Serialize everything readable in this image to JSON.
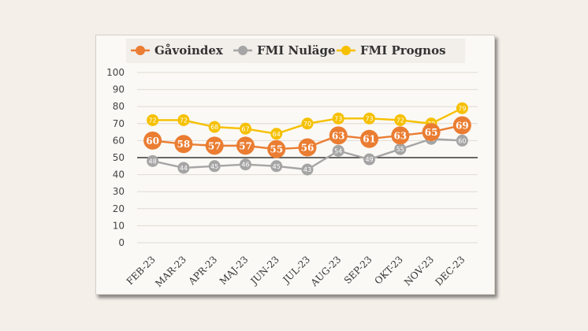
{
  "chart_data": {
    "type": "line",
    "categories": [
      "FEB-23",
      "MAR-23",
      "APR-23",
      "MAJ-23",
      "JUN-23",
      "JUL-23",
      "AUG-23",
      "SEP-23",
      "OKT-23",
      "NOV-23",
      "DEC-23"
    ],
    "series": [
      {
        "name": "Gåvoindex",
        "color": "#ea7d32",
        "values": [
          60,
          58,
          57,
          57,
          55,
          56,
          63,
          61,
          63,
          65,
          69
        ]
      },
      {
        "name": "FMI Nuläge",
        "color": "#a5a5a5",
        "values": [
          48,
          44,
          45,
          46,
          45,
          43,
          54,
          49,
          55,
          61,
          60
        ]
      },
      {
        "name": "FMI Prognos",
        "color": "#f6c000",
        "values": [
          72,
          72,
          68,
          67,
          64,
          70,
          73,
          73,
          72,
          70,
          79
        ]
      }
    ],
    "y_ticks": [
      0,
      10,
      20,
      30,
      40,
      50,
      60,
      70,
      80,
      90,
      100
    ],
    "ylim": [
      0,
      100
    ],
    "reference_line": 50,
    "legend_position": "top",
    "grid": true
  }
}
